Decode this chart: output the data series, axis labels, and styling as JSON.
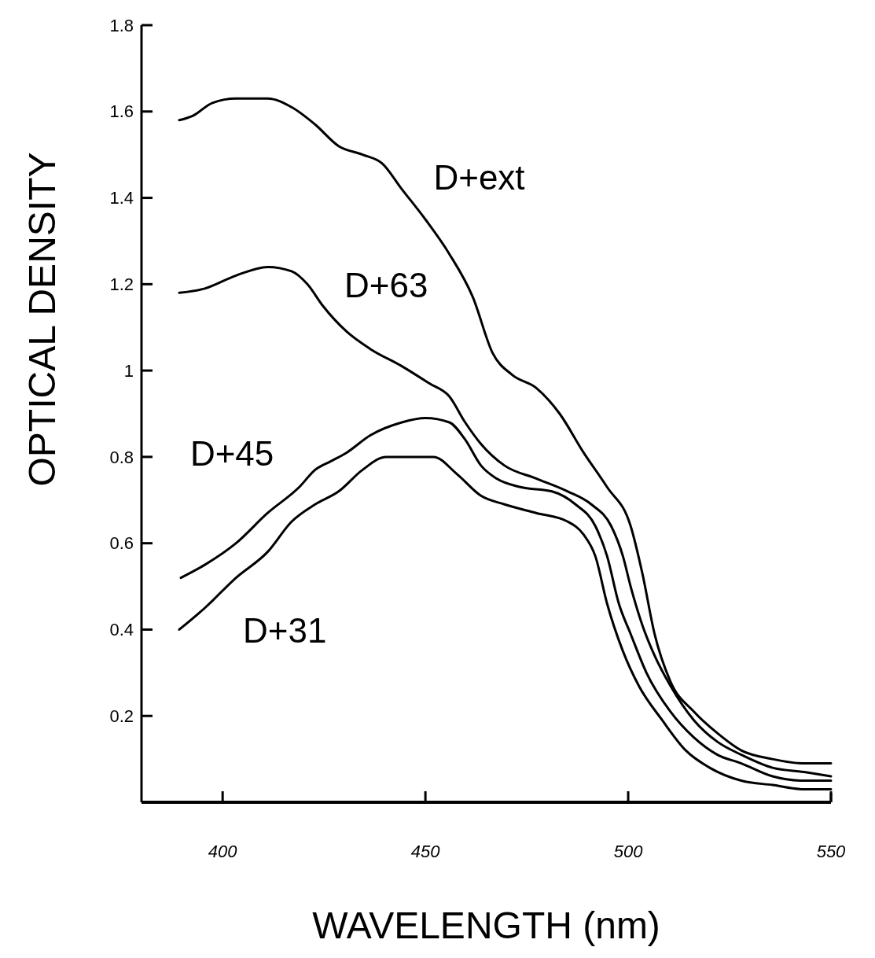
{
  "chart_data": {
    "type": "line",
    "xlabel": "WAVELENGTH  (nm)",
    "ylabel": "OPTICAL  DENSITY",
    "xlim": [
      380,
      550
    ],
    "xticks": [
      400,
      450,
      500,
      550
    ],
    "ylim": [
      0,
      1.8
    ],
    "yticks": [
      {
        "value": 0,
        "label": null
      },
      0.2,
      0.4,
      0.6,
      0.8,
      1.0,
      1.2,
      1.4,
      1.6,
      1.8
    ],
    "legend": false,
    "grid": false,
    "marker": "none",
    "line_style": "solid",
    "series": [
      {
        "name": "D+ext",
        "color": "#000000",
        "x": [
          389.3,
          392.6,
          397.5,
          403.3,
          411.1,
          417,
          422.8,
          428.6,
          434.5,
          439.3,
          444.2,
          450,
          455.9,
          461.7,
          466.6,
          471.4,
          477.3,
          483.1,
          489,
          494.8,
          500.6,
          503.5,
          506.5,
          510.4,
          516.2,
          522,
          527.9,
          535.6,
          543.4,
          550
        ],
        "values": [
          1.58,
          1.59,
          1.62,
          1.63,
          1.63,
          1.61,
          1.57,
          1.52,
          1.5,
          1.48,
          1.42,
          1.35,
          1.27,
          1.17,
          1.04,
          0.99,
          0.96,
          0.9,
          0.81,
          0.73,
          0.64,
          0.53,
          0.39,
          0.28,
          0.21,
          0.16,
          0.12,
          0.1,
          0.09,
          0.09
        ]
      },
      {
        "name": "D+63",
        "color": "#000000",
        "x": [
          389.3,
          395.6,
          403.3,
          411.1,
          417,
          420.9,
          424.7,
          430.6,
          436.4,
          444.2,
          451,
          455.9,
          459.8,
          463.7,
          469.5,
          477.3,
          485.1,
          490.9,
          495.8,
          498.7,
          500.6,
          503.5,
          506.5,
          510.4,
          516.2,
          522,
          527.9,
          535.6,
          543.4,
          550
        ],
        "values": [
          1.18,
          1.19,
          1.22,
          1.24,
          1.23,
          1.2,
          1.15,
          1.09,
          1.05,
          1.01,
          0.97,
          0.94,
          0.88,
          0.83,
          0.78,
          0.75,
          0.72,
          0.69,
          0.64,
          0.57,
          0.5,
          0.41,
          0.34,
          0.27,
          0.19,
          0.14,
          0.11,
          0.08,
          0.07,
          0.06
        ]
      },
      {
        "name": "D+45",
        "color": "#000000",
        "x": [
          389.7,
          395.6,
          403.3,
          411.1,
          418.9,
          422.8,
          426.7,
          430.6,
          436.4,
          444.2,
          450,
          455.9,
          459.8,
          463.7,
          467.5,
          473.4,
          481.2,
          487,
          491.9,
          494.8,
          497.7,
          500.6,
          504.5,
          510.4,
          516.2,
          522,
          527.9,
          535.6,
          543.4,
          550
        ],
        "values": [
          0.52,
          0.55,
          0.6,
          0.67,
          0.73,
          0.77,
          0.79,
          0.81,
          0.85,
          0.88,
          0.89,
          0.88,
          0.84,
          0.78,
          0.75,
          0.73,
          0.72,
          0.69,
          0.64,
          0.57,
          0.46,
          0.39,
          0.3,
          0.21,
          0.15,
          0.11,
          0.09,
          0.06,
          0.05,
          0.05
        ]
      },
      {
        "name": "D+31",
        "color": "#000000",
        "x": [
          389.3,
          395.6,
          403.3,
          411.1,
          417,
          422.8,
          428.6,
          434.5,
          440.3,
          446.1,
          452,
          457.8,
          463.7,
          469.5,
          477.3,
          485.1,
          489,
          491.9,
          494.8,
          498.7,
          502.6,
          508.4,
          514.2,
          520.1,
          527.9,
          535.6,
          543.4,
          550
        ],
        "values": [
          0.4,
          0.45,
          0.52,
          0.58,
          0.65,
          0.69,
          0.72,
          0.77,
          0.8,
          0.8,
          0.8,
          0.76,
          0.71,
          0.69,
          0.67,
          0.65,
          0.62,
          0.57,
          0.46,
          0.35,
          0.27,
          0.19,
          0.12,
          0.08,
          0.05,
          0.04,
          0.03,
          0.03
        ]
      }
    ]
  }
}
